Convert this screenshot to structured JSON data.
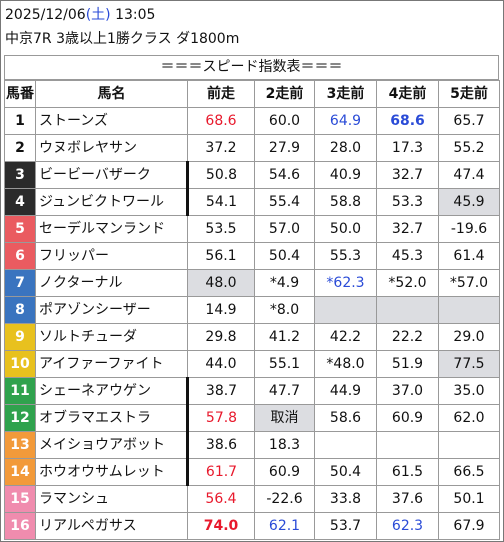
{
  "header": {
    "date": "2025/12/06",
    "weekday_open": "(",
    "weekday": "土",
    "weekday_close": ")",
    "time": "13:05",
    "race": "中京7R 3歳以上1勝クラス ダ1800m"
  },
  "title": "＝＝＝スピード指数表＝＝＝",
  "columns": [
    "馬番",
    "馬名",
    "前走",
    "2走前",
    "3走前",
    "4走前",
    "5走前"
  ],
  "colors": {
    "frame1": "#ffffff",
    "frame2": "#ffffff",
    "frame3": "#2b2b2b",
    "frame4": "#2b2b2b",
    "frame5": "#ea5b60",
    "frame6": "#ea5b60",
    "frame7": "#3a74bf",
    "frame8": "#3a74bf",
    "frame9": "#e8c11e",
    "frame10": "#e8c11e",
    "frame11": "#2fa24d",
    "frame12": "#2fa24d",
    "frame13": "#f29a3a",
    "frame14": "#f29a3a",
    "frame15": "#f08cae",
    "frame16": "#f08cae",
    "red": "#e8192c",
    "blue": "#2a4bd7",
    "highlight_gray": "#dcdde1"
  },
  "horses": [
    {
      "no": "1",
      "name": "ストーンズ",
      "v": [
        "68.6",
        "60.0",
        "64.9",
        "68.6",
        "65.7"
      ]
    },
    {
      "no": "2",
      "name": "ウヌボレヤサン",
      "v": [
        "37.2",
        "27.9",
        "28.0",
        "17.3",
        "55.2"
      ]
    },
    {
      "no": "3",
      "name": "ビービーバザーク",
      "v": [
        "50.8",
        "54.6",
        "40.9",
        "32.7",
        "47.4"
      ]
    },
    {
      "no": "4",
      "name": "ジュンビクトワール",
      "v": [
        "54.1",
        "55.4",
        "58.8",
        "53.3",
        "45.9"
      ]
    },
    {
      "no": "5",
      "name": "セーデルマンランド",
      "v": [
        "53.5",
        "57.0",
        "50.0",
        "32.7",
        "-19.6"
      ]
    },
    {
      "no": "6",
      "name": "フリッパー",
      "v": [
        "56.1",
        "50.4",
        "55.3",
        "45.3",
        "61.4"
      ]
    },
    {
      "no": "7",
      "name": "ノクターナル",
      "v": [
        "48.0",
        "*4.9",
        "*62.3",
        "*52.0",
        "*57.0"
      ]
    },
    {
      "no": "8",
      "name": "ポアゾンシーザー",
      "v": [
        "14.9",
        "*8.0",
        "",
        "",
        ""
      ]
    },
    {
      "no": "9",
      "name": "ソルトチューダ",
      "v": [
        "29.8",
        "41.2",
        "42.2",
        "22.2",
        "29.0"
      ]
    },
    {
      "no": "10",
      "name": "アイファーファイト",
      "v": [
        "44.0",
        "55.1",
        "*48.0",
        "51.9",
        "77.5"
      ]
    },
    {
      "no": "11",
      "name": "シェーネアウゲン",
      "v": [
        "38.7",
        "47.7",
        "44.9",
        "37.0",
        "35.0"
      ]
    },
    {
      "no": "12",
      "name": "オブラマエストラ",
      "v": [
        "57.8",
        "取消",
        "58.6",
        "60.9",
        "62.0"
      ]
    },
    {
      "no": "13",
      "name": "メイショウアボット",
      "v": [
        "38.6",
        "18.3",
        "",
        "",
        ""
      ]
    },
    {
      "no": "14",
      "name": "ホウオウサムレット",
      "v": [
        "61.7",
        "60.9",
        "50.4",
        "61.5",
        "66.5"
      ]
    },
    {
      "no": "15",
      "name": "ラマンシュ",
      "v": [
        "56.4",
        "-22.6",
        "33.8",
        "37.6",
        "50.1"
      ]
    },
    {
      "no": "16",
      "name": "リアルペガサス",
      "v": [
        "74.0",
        "62.1",
        "53.7",
        "62.3",
        "67.9"
      ]
    }
  ]
}
